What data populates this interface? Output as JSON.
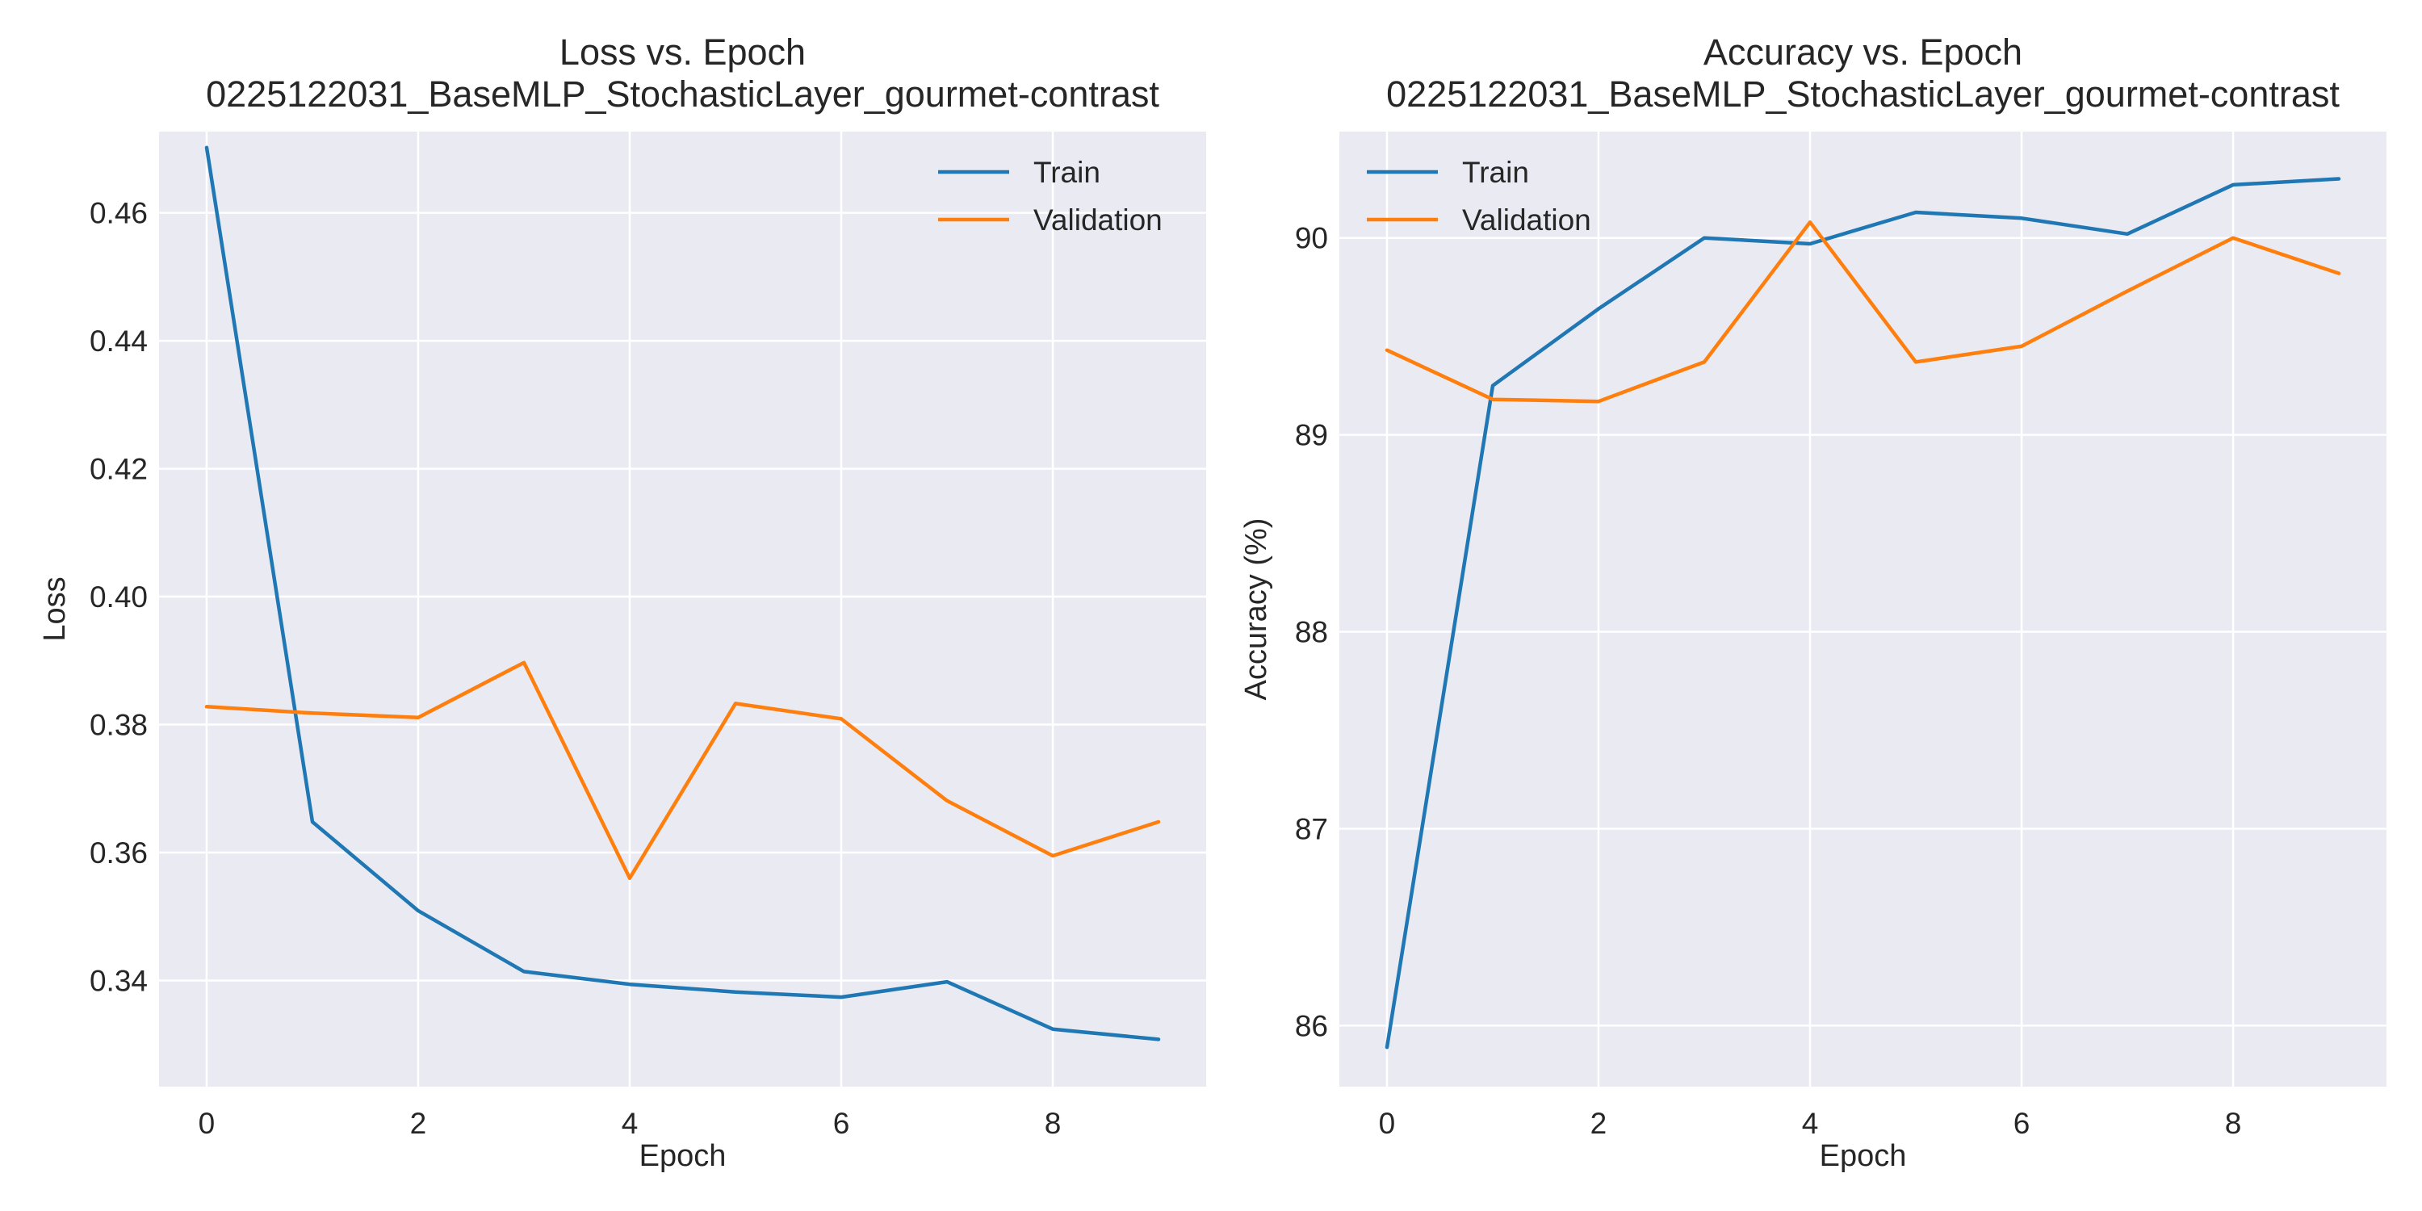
{
  "chart_data": [
    {
      "type": "line",
      "title": "Loss vs. Epoch\n0225122031_BaseMLP_StochasticLayer_gourmet-contrast",
      "xlabel": "Epoch",
      "ylabel": "Loss",
      "xlim": [
        -0.45,
        9.45
      ],
      "ylim": [
        0.3234,
        0.4727
      ],
      "x_ticks": [
        0,
        2,
        4,
        6,
        8
      ],
      "y_ticks": [
        0.34,
        0.36,
        0.38,
        0.4,
        0.42,
        0.44,
        0.46
      ],
      "y_tick_labels": [
        "0.34",
        "0.36",
        "0.38",
        "0.40",
        "0.42",
        "0.44",
        "0.46"
      ],
      "grid": true,
      "legend_position": "top-right",
      "x": [
        0,
        1,
        2,
        3,
        4,
        5,
        6,
        7,
        8,
        9
      ],
      "series": [
        {
          "name": "Train",
          "color": "#1f77b4",
          "values": [
            0.4702,
            0.3648,
            0.3509,
            0.3414,
            0.3394,
            0.3382,
            0.3374,
            0.3398,
            0.3324,
            0.3308
          ]
        },
        {
          "name": "Validation",
          "color": "#ff7f0e",
          "values": [
            0.3828,
            0.3818,
            0.3811,
            0.3897,
            0.356,
            0.3833,
            0.3809,
            0.3681,
            0.3595,
            0.3648
          ]
        }
      ]
    },
    {
      "type": "line",
      "title": "Accuracy vs. Epoch\n0225122031_BaseMLP_StochasticLayer_gourmet-contrast",
      "xlabel": "Epoch",
      "ylabel": "Accuracy (%)",
      "xlim": [
        -0.45,
        9.45
      ],
      "ylim": [
        85.69,
        90.54
      ],
      "x_ticks": [
        0,
        2,
        4,
        6,
        8
      ],
      "y_ticks": [
        86,
        87,
        88,
        89,
        90
      ],
      "y_tick_labels": [
        "86",
        "87",
        "88",
        "89",
        "90"
      ],
      "grid": true,
      "legend_position": "top-left",
      "x": [
        0,
        1,
        2,
        3,
        4,
        5,
        6,
        7,
        8,
        9
      ],
      "series": [
        {
          "name": "Train",
          "color": "#1f77b4",
          "values": [
            85.89,
            89.25,
            89.64,
            90.0,
            89.97,
            90.13,
            90.1,
            90.02,
            90.27,
            90.3
          ]
        },
        {
          "name": "Validation",
          "color": "#ff7f0e",
          "values": [
            89.43,
            89.18,
            89.17,
            89.37,
            90.08,
            89.37,
            89.45,
            89.73,
            90.0,
            89.82
          ]
        }
      ]
    }
  ]
}
